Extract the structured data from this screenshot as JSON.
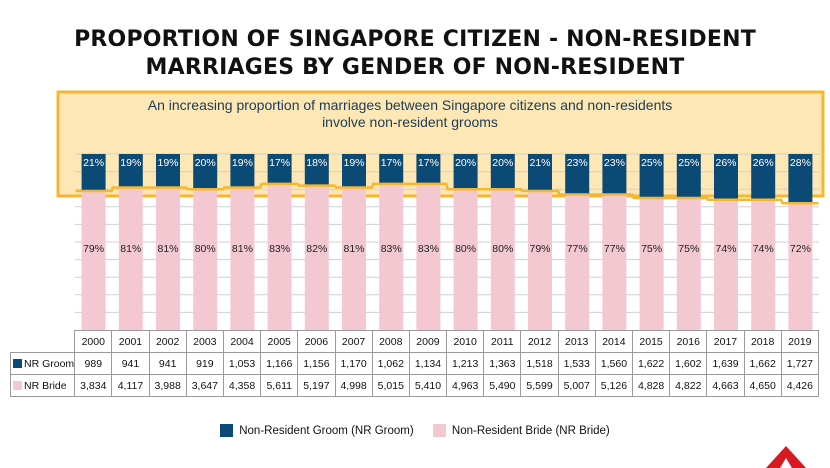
{
  "title": {
    "line1": "PROPORTION OF SINGAPORE CITIZEN - NON-RESIDENT",
    "line2": "MARRIAGES BY GENDER OF NON-RESIDENT"
  },
  "callout": {
    "line1": "An increasing proportion of marriages between Singapore citizens and non-residents",
    "line2": "involve non-resident grooms"
  },
  "colors": {
    "groom": "#0b4a75",
    "bride": "#f4c8d1",
    "highlight": "#f5b731",
    "callout_bg": "#fde7b4"
  },
  "chart_data": {
    "type": "bar",
    "stacked": true,
    "percent": true,
    "categories": [
      "2000",
      "2001",
      "2002",
      "2003",
      "2004",
      "2005",
      "2006",
      "2007",
      "2008",
      "2009",
      "2010",
      "2011",
      "2012",
      "2013",
      "2014",
      "2015",
      "2016",
      "2017",
      "2018",
      "2019"
    ],
    "ylim": [
      0,
      100
    ],
    "grid": true,
    "legend_position": "bottom",
    "series": [
      {
        "name": "Non-Resident Groom (NR Groom)",
        "short": "NR Groom",
        "color": "#0b4a75",
        "percent_labels": [
          "21%",
          "19%",
          "19%",
          "20%",
          "19%",
          "17%",
          "18%",
          "19%",
          "17%",
          "17%",
          "20%",
          "20%",
          "21%",
          "23%",
          "23%",
          "25%",
          "25%",
          "26%",
          "26%",
          "28%"
        ],
        "percent": [
          21,
          19,
          19,
          20,
          19,
          17,
          18,
          19,
          17,
          17,
          20,
          20,
          21,
          23,
          23,
          25,
          25,
          26,
          26,
          28
        ],
        "counts": [
          "989",
          "941",
          "941",
          "919",
          "1,053",
          "1,166",
          "1,156",
          "1,170",
          "1,062",
          "1,134",
          "1,213",
          "1,363",
          "1,518",
          "1,533",
          "1,560",
          "1,622",
          "1,602",
          "1,639",
          "1,662",
          "1,727"
        ]
      },
      {
        "name": "Non-Resident Bride (NR Bride)",
        "short": "NR Bride",
        "color": "#f4c8d1",
        "percent_labels": [
          "79%",
          "81%",
          "81%",
          "80%",
          "81%",
          "83%",
          "82%",
          "81%",
          "83%",
          "83%",
          "80%",
          "80%",
          "79%",
          "77%",
          "77%",
          "75%",
          "75%",
          "74%",
          "74%",
          "72%"
        ],
        "percent": [
          79,
          81,
          81,
          80,
          81,
          83,
          82,
          81,
          83,
          83,
          80,
          80,
          79,
          77,
          77,
          75,
          75,
          74,
          74,
          72
        ],
        "counts": [
          "3,834",
          "4,117",
          "3,988",
          "3,647",
          "4,358",
          "5,611",
          "5,197",
          "4,998",
          "5,015",
          "5,410",
          "4,963",
          "5,490",
          "5,599",
          "5,007",
          "5,126",
          "4,828",
          "4,822",
          "4,663",
          "4,650",
          "4,426"
        ]
      }
    ]
  }
}
